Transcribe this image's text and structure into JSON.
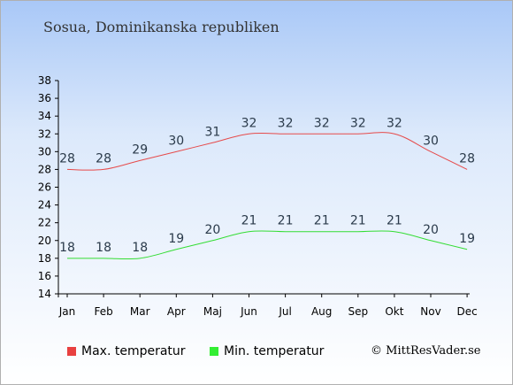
{
  "title": "Sosua, Dominikanska republiken",
  "credit": "© MittResVader.se",
  "legend": {
    "max_label": "Max. temperatur",
    "min_label": "Min. temperatur"
  },
  "colors": {
    "max": "#e64a4a",
    "min": "#33dd33",
    "max_swatch": "#e84040",
    "min_swatch": "#33ee33"
  },
  "chart_data": {
    "type": "line",
    "categories": [
      "Jan",
      "Feb",
      "Mar",
      "Apr",
      "Maj",
      "Jun",
      "Jul",
      "Aug",
      "Sep",
      "Okt",
      "Nov",
      "Dec"
    ],
    "series": [
      {
        "name": "Max. temperatur",
        "values": [
          28,
          28,
          29,
          30,
          31,
          32,
          32,
          32,
          32,
          32,
          30,
          28
        ]
      },
      {
        "name": "Min. temperatur",
        "values": [
          18,
          18,
          18,
          19,
          20,
          21,
          21,
          21,
          21,
          21,
          20,
          19
        ]
      }
    ],
    "yticks": [
      14,
      16,
      18,
      20,
      22,
      24,
      26,
      28,
      30,
      32,
      34,
      36,
      38
    ],
    "ylim": [
      14,
      38
    ],
    "grid": false
  }
}
